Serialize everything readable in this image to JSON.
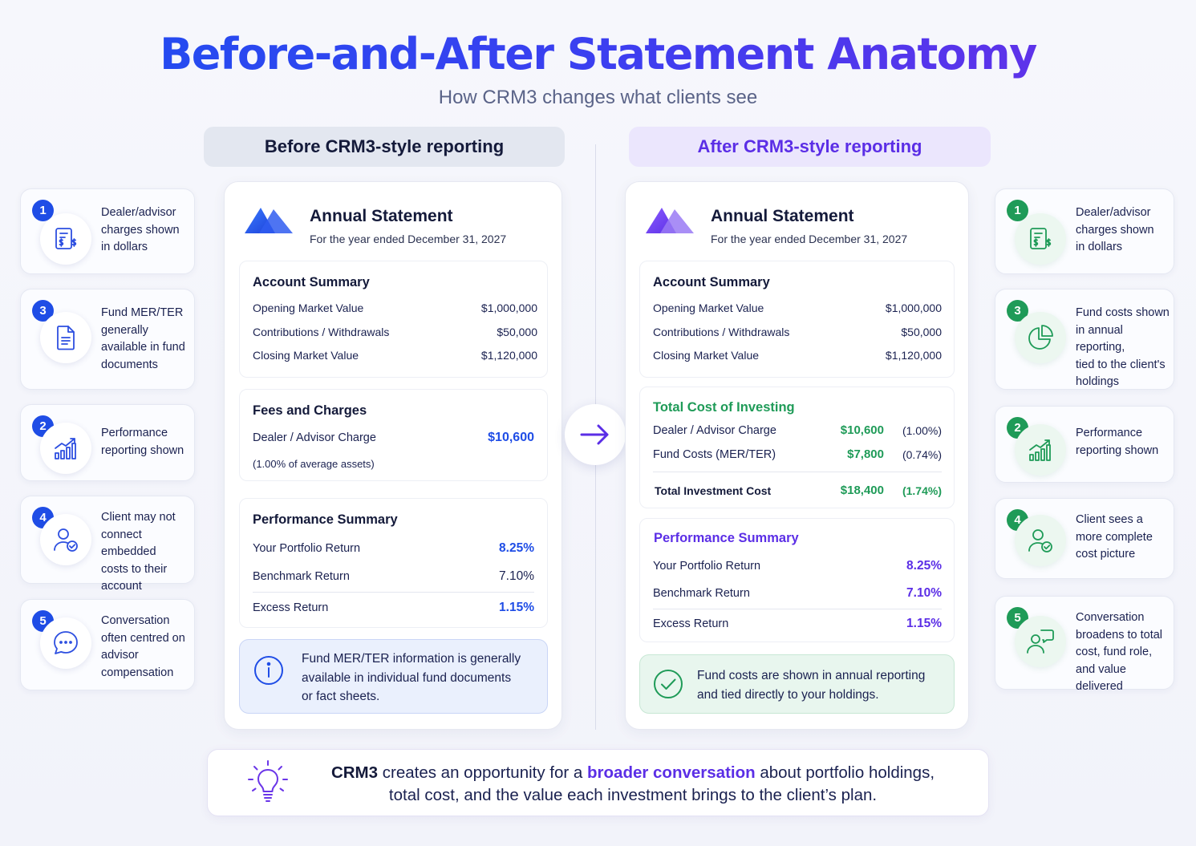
{
  "header": {
    "title": "Before-and-After Statement Anatomy",
    "subtitle": "How CRM3 changes what clients see"
  },
  "columns": {
    "before_label": "Before CRM3-style reporting",
    "after_label": "After CRM3-style reporting"
  },
  "left_cards": [
    {
      "number": "1",
      "icon": "document-dollar-icon",
      "lines": [
        "Dealer/advisor",
        "charges shown",
        "in dollars"
      ]
    },
    {
      "number": "3",
      "icon": "document-icon",
      "lines": [
        "Fund MER/TER",
        "generally",
        "available in fund",
        "documents"
      ]
    },
    {
      "number": "2",
      "icon": "bar-chart-growth-icon",
      "lines": [
        "Performance",
        "reporting shown"
      ]
    },
    {
      "number": "4",
      "icon": "user-check-icon",
      "lines": [
        "Client may not",
        "connect embedded",
        "costs to their",
        "account"
      ]
    },
    {
      "number": "5",
      "icon": "chat-bubble-icon",
      "lines": [
        "Conversation",
        "often centred on",
        "advisor",
        "compensation"
      ]
    }
  ],
  "right_cards": [
    {
      "number": "1",
      "icon": "document-dollar-icon",
      "lines": [
        "Dealer/advisor",
        "charges shown",
        "in dollars"
      ]
    },
    {
      "number": "3",
      "icon": "pie-chart-icon",
      "lines": [
        "Fund costs shown",
        "in annual reporting,",
        "tied to the client's",
        "holdings"
      ]
    },
    {
      "number": "2",
      "icon": "bar-chart-growth-icon",
      "lines": [
        "Performance",
        "reporting shown"
      ]
    },
    {
      "number": "4",
      "icon": "user-check-icon",
      "lines": [
        "Client sees a",
        "more complete",
        "cost picture"
      ]
    },
    {
      "number": "5",
      "icon": "people-conversation-icon",
      "lines": [
        "Conversation",
        "broadens to total",
        "cost, fund role,",
        "and value delivered"
      ]
    }
  ],
  "before": {
    "statement_title": "Annual Statement",
    "statement_period": "For the year ended December 31, 2027",
    "account_summary": {
      "title": "Account Summary",
      "rows": [
        {
          "label": "Opening Market Value",
          "value": "$1,000,000"
        },
        {
          "label": "Contributions / Withdrawals",
          "value": "$50,000"
        },
        {
          "label": "Closing Market Value",
          "value": "$1,120,000"
        }
      ]
    },
    "fees": {
      "title": "Fees and Charges",
      "label": "Dealer / Advisor Charge",
      "value": "$10,600",
      "note": "(1.00% of average assets)"
    },
    "performance": {
      "title": "Performance Summary",
      "rows": [
        {
          "label": "Your Portfolio Return",
          "value": "8.25%"
        },
        {
          "label": "Benchmark Return",
          "value": "7.10%"
        },
        {
          "label": "Excess Return",
          "value": "1.15%"
        }
      ]
    },
    "note": {
      "icon": "info-icon",
      "lines": [
        "Fund MER/TER information is generally",
        "available in individual fund documents",
        "or fact sheets."
      ]
    }
  },
  "after": {
    "statement_title": "Annual Statement",
    "statement_period": "For the year ended December 31, 2027",
    "account_summary": {
      "title": "Account Summary",
      "rows": [
        {
          "label": "Opening Market Value",
          "value": "$1,000,000"
        },
        {
          "label": "Contributions / Withdrawals",
          "value": "$50,000"
        },
        {
          "label": "Closing Market Value",
          "value": "$1,120,000"
        }
      ]
    },
    "total_cost": {
      "title": "Total Cost of Investing",
      "rows": [
        {
          "label": "Dealer / Advisor Charge",
          "value": "$10,600",
          "pct": "(1.00%)"
        },
        {
          "label": "Fund Costs (MER/TER)",
          "value": "$7,800",
          "pct": "(0.74%)"
        }
      ],
      "total": {
        "label": "Total Investment Cost",
        "value": "$18,400",
        "pct": "(1.74%)"
      }
    },
    "performance": {
      "title": "Performance Summary",
      "rows": [
        {
          "label": "Your Portfolio Return",
          "value": "8.25%"
        },
        {
          "label": "Benchmark Return",
          "value": "7.10%"
        },
        {
          "label": "Excess Return",
          "value": "1.15%"
        }
      ]
    },
    "note": {
      "icon": "check-circle-icon",
      "lines": [
        "Fund costs are shown in annual reporting",
        "and tied directly to your holdings."
      ]
    }
  },
  "footer": {
    "icon": "lightbulb-icon",
    "brand": "CRM3",
    "text1": " creates an opportunity for a ",
    "highlight": "broader conversation",
    "text2": " about portfolio holdings,",
    "line2": "total cost, and the value each investment brings to the client’s plan."
  },
  "colors": {
    "blue": "#1f4de6",
    "purple": "#5b2ee6",
    "green": "#1f9b58",
    "navy": "#141a3a"
  }
}
